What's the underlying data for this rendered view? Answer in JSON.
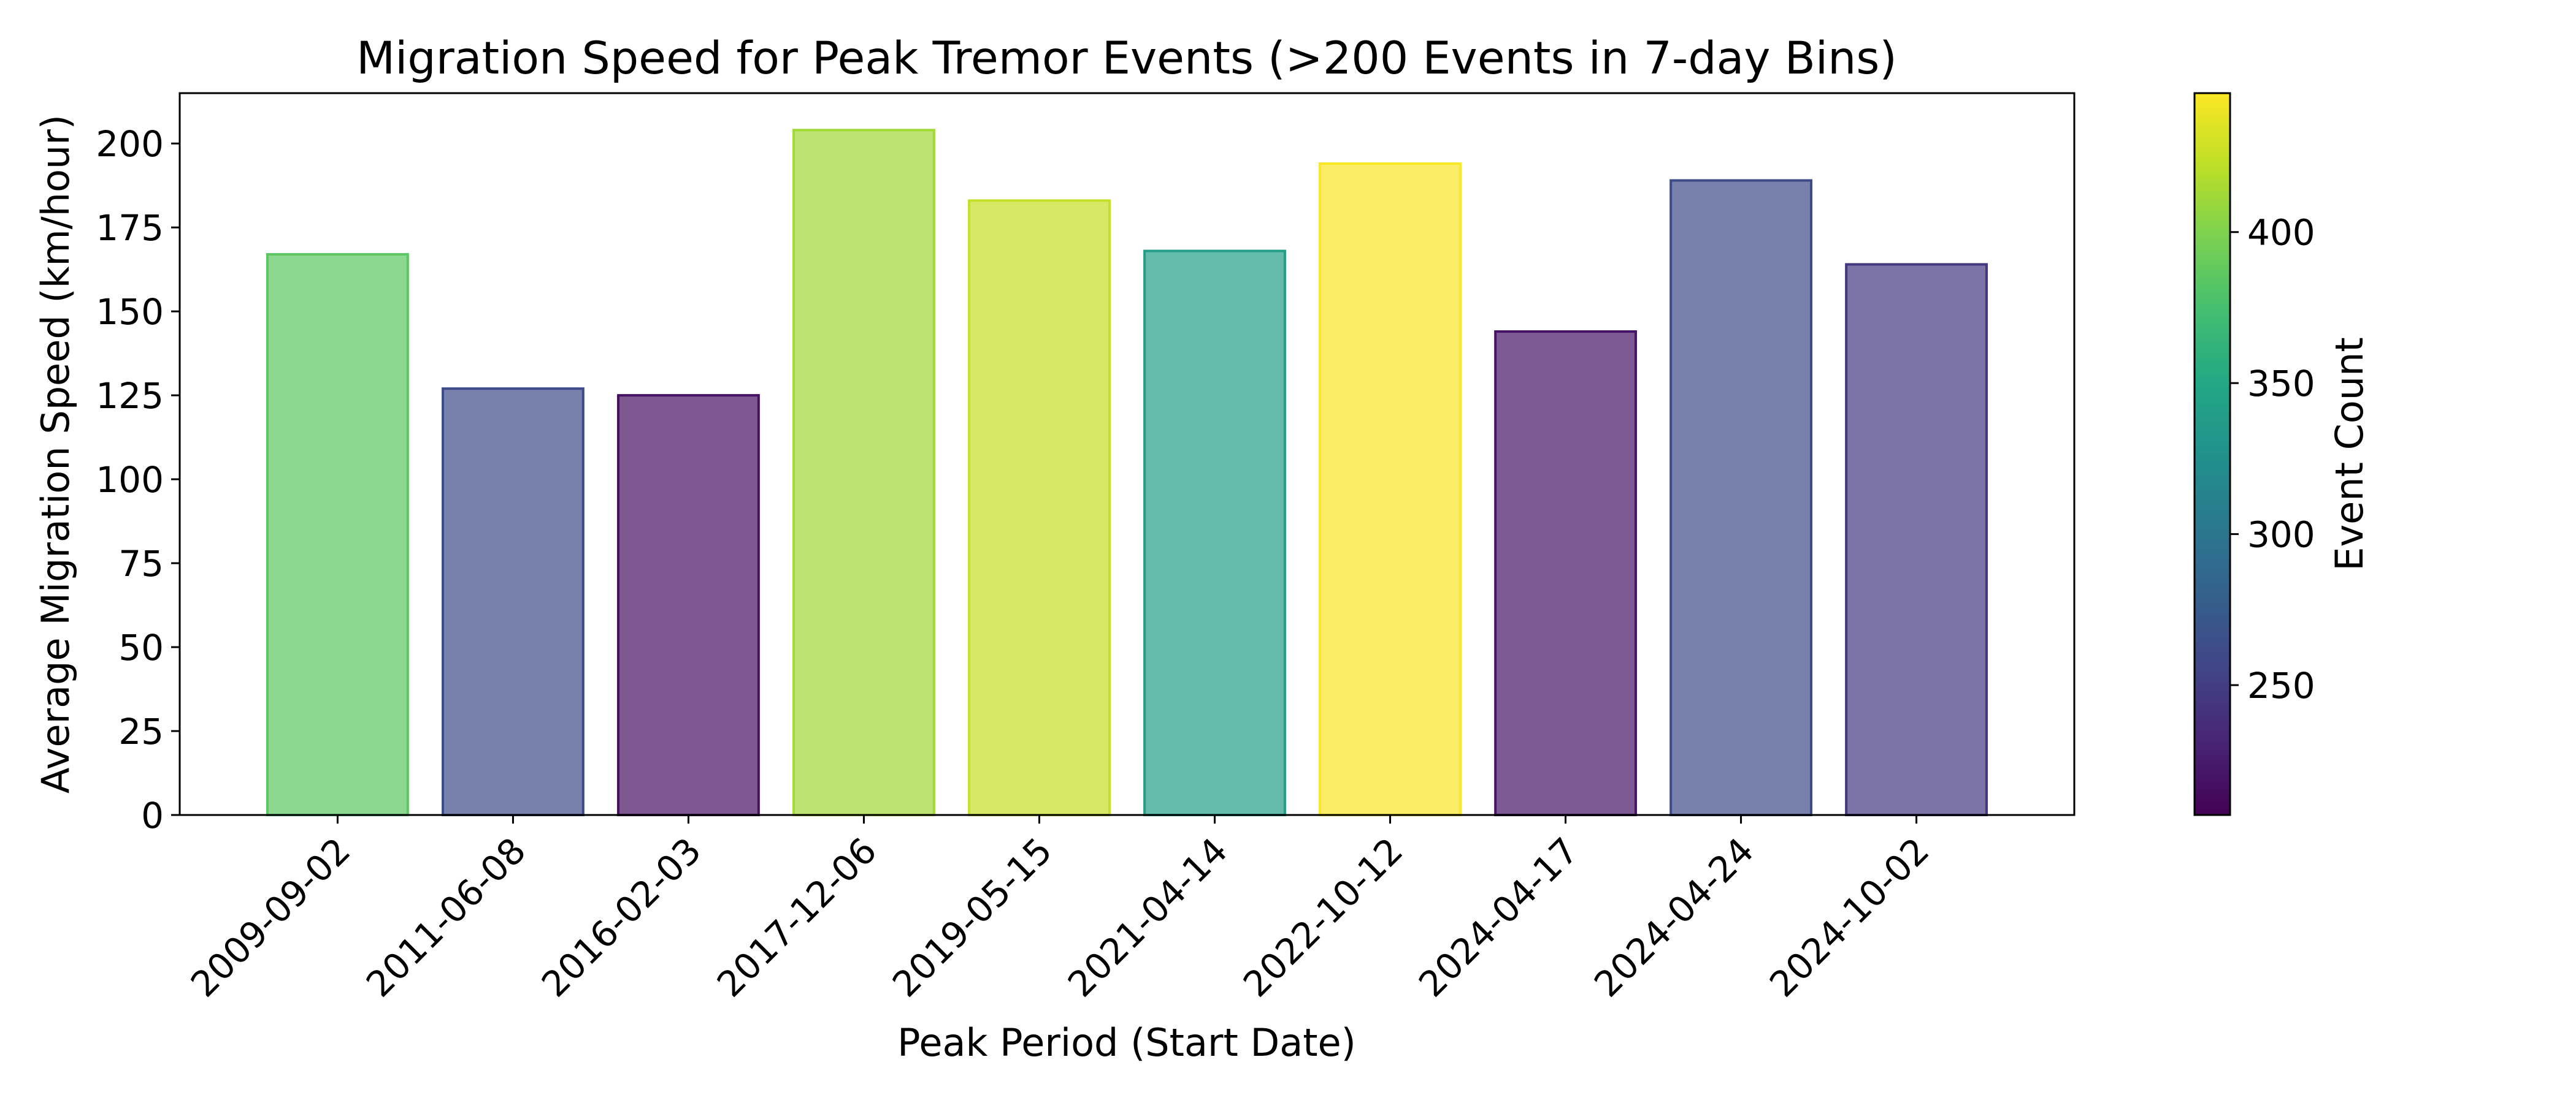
{
  "chart_data": {
    "type": "bar",
    "title": "Migration Speed for Peak Tremor Events (>200 Events in 7-day Bins)",
    "xlabel": "Peak Period (Start Date)",
    "ylabel": "Average Migration Speed (km/hour)",
    "categories": [
      "2009-09-02",
      "2011-06-08",
      "2016-02-03",
      "2017-12-06",
      "2019-05-15",
      "2021-04-14",
      "2022-10-12",
      "2024-04-17",
      "2024-04-24",
      "2024-10-02"
    ],
    "values": [
      167,
      127,
      125,
      204,
      183,
      168,
      194,
      144,
      189,
      164
    ],
    "event_counts": [
      385,
      262,
      218,
      412,
      425,
      340,
      445,
      220,
      262,
      245
    ],
    "ylim": [
      0,
      215
    ],
    "yticks": [
      0,
      25,
      50,
      75,
      100,
      125,
      150,
      175,
      200
    ],
    "colorbar": {
      "label": "Event Count",
      "range": [
        207,
        446
      ],
      "ticks": [
        250,
        300,
        350,
        400
      ],
      "colormap": "viridis"
    },
    "grid": false,
    "bar_alpha": 0.7
  }
}
